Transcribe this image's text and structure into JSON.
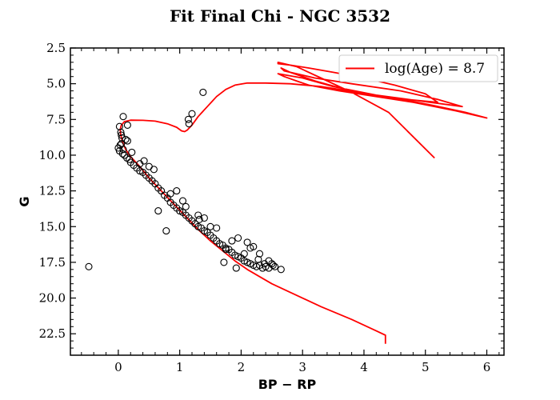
{
  "chart_data": {
    "type": "scatter",
    "title": "Fit Final Chi - NGC 3532",
    "xlabel": "BP − RP",
    "ylabel": "G",
    "xlim": [
      -0.78,
      6.28
    ],
    "ylim": [
      24.0,
      2.5
    ],
    "y_inverted": true,
    "grid": false,
    "legend_position": "top-right",
    "xticks": [
      0,
      1,
      2,
      3,
      4,
      5,
      6
    ],
    "xtick_labels": [
      "0",
      "1",
      "2",
      "3",
      "4",
      "5",
      "6"
    ],
    "yticks": [
      2.5,
      5.0,
      7.5,
      10.0,
      12.5,
      15.0,
      17.5,
      20.0,
      22.5
    ],
    "ytick_labels": [
      "2.5",
      "5.0",
      "7.5",
      "10.0",
      "12.5",
      "15.0",
      "17.5",
      "20.0",
      "22.5"
    ],
    "series": [
      {
        "name": "log(Age) = 8.7",
        "kind": "line",
        "color": "#ff0000",
        "x": [
          4.35,
          4.35,
          4.2,
          3.8,
          3.3,
          2.8,
          2.5,
          2.3,
          2.1,
          1.9,
          1.7,
          1.5,
          1.3,
          1.1,
          0.9,
          0.7,
          0.5,
          0.35,
          0.2,
          0.12,
          0.07,
          0.04,
          0.03,
          0.05,
          0.1,
          0.2,
          0.4,
          0.6,
          0.8,
          0.95,
          1.03,
          1.08,
          1.12,
          1.2,
          1.3,
          1.45,
          1.6,
          1.75,
          1.9,
          2.1,
          2.4,
          2.8,
          3.3,
          3.9,
          4.5,
          5.1,
          5.65,
          6.0,
          5.5,
          4.8,
          4.2,
          3.6,
          3.1,
          2.9,
          2.7,
          2.6,
          3.0,
          3.5,
          4.2,
          4.9,
          5.6,
          5.2,
          4.6,
          3.8,
          3.2,
          2.9,
          2.7,
          2.65,
          2.8,
          3.2,
          3.7,
          4.2,
          4.7,
          5.2,
          5.0,
          4.5,
          4.0,
          3.5,
          3.1,
          2.8,
          2.6,
          2.6,
          2.9,
          3.3,
          3.8,
          4.4,
          5.15
        ],
        "y": [
          23.2,
          22.6,
          22.3,
          21.5,
          20.6,
          19.6,
          19.0,
          18.5,
          18.0,
          17.4,
          16.7,
          16.0,
          15.2,
          14.3,
          13.4,
          12.5,
          11.6,
          10.8,
          10.1,
          9.6,
          9.1,
          8.6,
          8.2,
          7.9,
          7.65,
          7.55,
          7.56,
          7.62,
          7.8,
          8.05,
          8.3,
          8.35,
          8.25,
          7.9,
          7.3,
          6.6,
          5.9,
          5.4,
          5.1,
          4.95,
          4.95,
          5.0,
          5.2,
          5.6,
          6.0,
          6.5,
          7.0,
          7.4,
          6.9,
          6.3,
          5.9,
          5.5,
          5.1,
          4.8,
          4.5,
          4.3,
          4.6,
          5.2,
          5.8,
          6.2,
          6.6,
          6.1,
          5.5,
          5.0,
          4.6,
          4.3,
          4.1,
          3.9,
          4.2,
          4.8,
          5.4,
          5.8,
          6.1,
          6.3,
          5.7,
          5.1,
          4.6,
          4.2,
          3.9,
          3.7,
          3.6,
          3.5,
          3.8,
          4.6,
          5.6,
          7.0,
          10.2
        ]
      },
      {
        "name": "",
        "kind": "scatter",
        "marker": "open-circle",
        "color": "#000000",
        "x": [
          -0.48,
          0.08,
          0.02,
          0.04,
          0.06,
          0.05,
          0.0,
          0.02,
          0.07,
          0.03,
          0.05,
          0.08,
          0.1,
          0.14,
          0.18,
          0.2,
          0.25,
          0.15,
          0.3,
          0.35,
          0.4,
          0.45,
          0.5,
          0.55,
          0.6,
          0.35,
          0.65,
          0.7,
          0.75,
          0.8,
          0.85,
          0.9,
          0.95,
          1.0,
          1.05,
          1.1,
          1.15,
          1.2,
          1.25,
          1.3,
          1.35,
          1.4,
          1.45,
          1.5,
          1.55,
          1.6,
          1.65,
          1.7,
          1.75,
          1.8,
          1.85,
          1.9,
          1.95,
          2.0,
          2.05,
          2.1,
          2.15,
          2.2,
          2.25,
          2.3,
          2.35,
          2.4,
          2.45,
          2.5,
          2.55,
          2.65,
          2.3,
          2.2,
          2.1,
          1.95,
          1.85,
          1.75,
          1.6,
          1.5,
          1.4,
          1.3,
          1.1,
          0.65,
          0.78,
          0.95,
          1.38,
          1.15,
          1.2,
          1.14,
          0.15,
          0.5,
          0.58,
          0.85,
          1.05,
          1.32,
          1.72,
          1.92,
          2.05,
          2.15,
          2.28,
          2.38,
          2.45,
          2.52,
          0.22,
          0.12,
          0.42
        ],
        "y": [
          17.8,
          7.3,
          8.0,
          8.4,
          8.8,
          9.2,
          9.5,
          9.7,
          9.9,
          9.3,
          8.6,
          9.6,
          10.0,
          10.2,
          10.3,
          10.5,
          10.7,
          9.0,
          10.9,
          11.1,
          11.2,
          11.4,
          11.6,
          11.8,
          12.0,
          10.6,
          12.3,
          12.5,
          12.8,
          13.0,
          13.3,
          13.5,
          13.7,
          13.9,
          14.0,
          14.2,
          14.4,
          14.6,
          14.8,
          15.0,
          15.1,
          15.3,
          15.4,
          15.6,
          15.8,
          16.0,
          16.2,
          16.3,
          16.5,
          16.6,
          16.8,
          17.0,
          17.1,
          17.2,
          17.4,
          17.5,
          17.6,
          17.7,
          17.8,
          17.7,
          17.9,
          17.8,
          17.9,
          17.6,
          17.8,
          18.0,
          16.9,
          16.4,
          16.1,
          15.8,
          16.0,
          16.6,
          15.1,
          15.0,
          14.4,
          14.2,
          13.6,
          13.9,
          15.3,
          12.5,
          5.6,
          7.8,
          7.1,
          7.5,
          7.9,
          10.8,
          11.0,
          12.7,
          13.2,
          14.5,
          17.5,
          17.9,
          16.9,
          16.5,
          17.3,
          17.6,
          17.4,
          17.7,
          9.8,
          8.9,
          10.4
        ]
      }
    ]
  }
}
